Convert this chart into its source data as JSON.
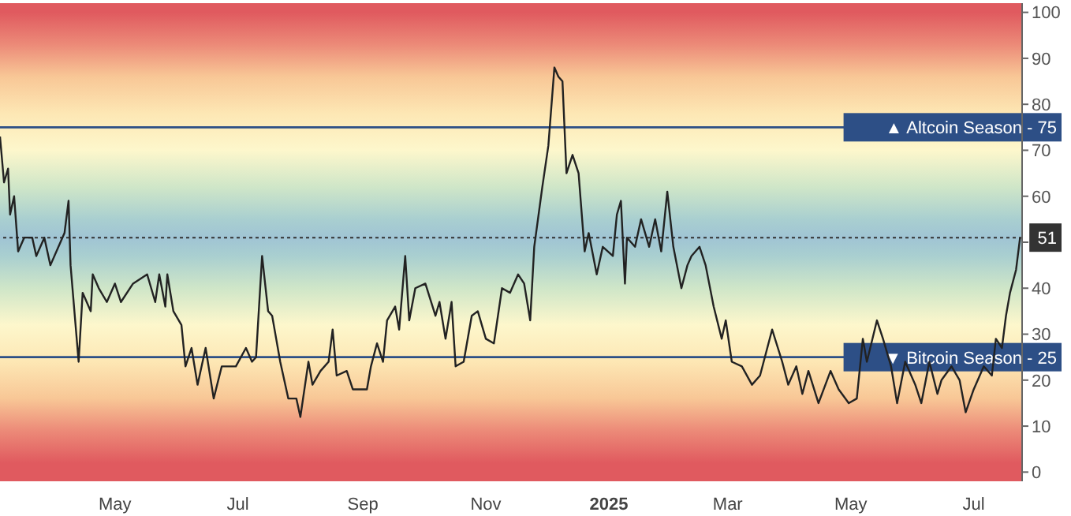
{
  "chart_data": {
    "type": "line",
    "x": [
      "2024-03-05",
      "2024-03-07",
      "2024-03-09",
      "2024-03-10",
      "2024-03-12",
      "2024-03-14",
      "2024-03-17",
      "2024-03-21",
      "2024-03-23",
      "2024-03-27",
      "2024-03-30",
      "2024-04-03",
      "2024-04-06",
      "2024-04-08",
      "2024-04-09",
      "2024-04-13",
      "2024-04-15",
      "2024-04-19",
      "2024-04-20",
      "2024-04-23",
      "2024-04-27",
      "2024-05-01",
      "2024-05-04",
      "2024-05-10",
      "2024-05-17",
      "2024-05-21",
      "2024-05-23",
      "2024-05-26",
      "2024-05-27",
      "2024-05-30",
      "2024-06-03",
      "2024-06-05",
      "2024-06-08",
      "2024-06-11",
      "2024-06-15",
      "2024-06-19",
      "2024-06-23",
      "2024-06-30",
      "2024-07-05",
      "2024-07-08",
      "2024-07-10",
      "2024-07-13",
      "2024-07-16",
      "2024-07-18",
      "2024-07-20",
      "2024-07-22",
      "2024-07-26",
      "2024-07-30",
      "2024-08-01",
      "2024-08-05",
      "2024-08-07",
      "2024-08-11",
      "2024-08-15",
      "2024-08-17",
      "2024-08-19",
      "2024-08-24",
      "2024-08-27",
      "2024-08-31",
      "2024-09-03",
      "2024-09-05",
      "2024-09-08",
      "2024-09-11",
      "2024-09-13",
      "2024-09-17",
      "2024-09-19",
      "2024-09-22",
      "2024-09-24",
      "2024-09-27",
      "2024-10-02",
      "2024-10-07",
      "2024-10-09",
      "2024-10-12",
      "2024-10-15",
      "2024-10-17",
      "2024-10-21",
      "2024-10-25",
      "2024-10-28",
      "2024-11-01",
      "2024-11-05",
      "2024-11-09",
      "2024-11-13",
      "2024-11-17",
      "2024-11-20",
      "2024-11-23",
      "2024-11-25",
      "2024-11-29",
      "2024-12-02",
      "2024-12-05",
      "2024-12-07",
      "2024-12-09",
      "2024-12-11",
      "2024-12-14",
      "2024-12-17",
      "2024-12-20",
      "2024-12-22",
      "2024-12-26",
      "2024-12-29",
      "2025-01-03",
      "2025-01-05",
      "2025-01-07",
      "2025-01-09",
      "2025-01-10",
      "2025-01-14",
      "2025-01-17",
      "2025-01-21",
      "2025-01-24",
      "2025-01-27",
      "2025-01-30",
      "2025-02-02",
      "2025-02-06",
      "2025-02-09",
      "2025-02-11",
      "2025-02-15",
      "2025-02-18",
      "2025-02-22",
      "2025-02-26",
      "2025-02-28",
      "2025-03-03",
      "2025-03-08",
      "2025-03-13",
      "2025-03-17",
      "2025-03-23",
      "2025-03-28",
      "2025-03-31",
      "2025-04-04",
      "2025-04-07",
      "2025-04-10",
      "2025-04-15",
      "2025-04-21",
      "2025-04-25",
      "2025-04-30",
      "2025-05-04",
      "2025-05-07",
      "2025-05-09",
      "2025-05-14",
      "2025-05-17",
      "2025-05-21",
      "2025-05-24",
      "2025-05-28",
      "2025-06-02",
      "2025-06-05",
      "2025-06-09",
      "2025-06-13",
      "2025-06-15",
      "2025-06-20",
      "2025-06-24",
      "2025-06-27",
      "2025-07-01",
      "2025-07-06",
      "2025-07-10",
      "2025-07-12",
      "2025-07-15",
      "2025-07-17",
      "2025-07-19",
      "2025-07-22",
      "2025-07-24"
    ],
    "series": [
      {
        "color": "#222222",
        "values": [
          73,
          63,
          66,
          56,
          60,
          48,
          51,
          51,
          47,
          51,
          45,
          49,
          52,
          59,
          45,
          24,
          39,
          35,
          43,
          40,
          37,
          41,
          37,
          41,
          43,
          37,
          43,
          36,
          43,
          35,
          32,
          23,
          27,
          19,
          27,
          16,
          23,
          23,
          27,
          24,
          25,
          47,
          35,
          34,
          29,
          24,
          16,
          16,
          12,
          24,
          19,
          22,
          24,
          31,
          21,
          22,
          18,
          18,
          18,
          23,
          28,
          24,
          33,
          36,
          31,
          47,
          33,
          40,
          41,
          34,
          37,
          29,
          37,
          23,
          24,
          34,
          35,
          29,
          28,
          40,
          39,
          43,
          41,
          33,
          49,
          62,
          71,
          88,
          86,
          85,
          65,
          69,
          65,
          48,
          52,
          43,
          49,
          47,
          56,
          59,
          41,
          51,
          49,
          55,
          49,
          55,
          48,
          61,
          49,
          40,
          45,
          47,
          49,
          45,
          36,
          29,
          33,
          24,
          23,
          19,
          21,
          31,
          24,
          19,
          23,
          17,
          22,
          15,
          22,
          18,
          15,
          16,
          29,
          24,
          33,
          29,
          23,
          15,
          24,
          19,
          15,
          24,
          17,
          20,
          23,
          20,
          13,
          18,
          23,
          21,
          29,
          27,
          34,
          39,
          44,
          51
        ]
      }
    ],
    "xlim": [
      "2024-03-05",
      "2025-07-25"
    ],
    "xticks": [
      {
        "value": "2024-05-01",
        "label": "May"
      },
      {
        "value": "2024-07-01",
        "label": "Jul"
      },
      {
        "value": "2024-09-01",
        "label": "Sep"
      },
      {
        "value": "2024-11-01",
        "label": "Nov"
      },
      {
        "value": "2025-01-01",
        "label": "2025"
      },
      {
        "value": "2025-03-01",
        "label": "Mar"
      },
      {
        "value": "2025-05-01",
        "label": "May"
      },
      {
        "value": "2025-07-01",
        "label": "Jul"
      }
    ],
    "ylim": [
      -2,
      102
    ],
    "yticks": [
      0,
      10,
      20,
      30,
      40,
      {
        "value": 50,
        "label": null
      },
      60,
      70,
      80,
      90,
      100
    ],
    "ref_lines": [
      {
        "axis": "y",
        "value": 75,
        "label": "▲ Altcoin Season - 75",
        "color": "#2d4f86",
        "line_style": "solid"
      },
      {
        "axis": "y",
        "value": 25,
        "label": "▼ Bitcoin Season - 25",
        "color": "#2d4f86",
        "line_style": "solid"
      },
      {
        "axis": "y",
        "value": 51,
        "label": "51",
        "color": "#333333",
        "line_style": "dotted"
      }
    ],
    "marker": "none",
    "line_style": "solid"
  }
}
